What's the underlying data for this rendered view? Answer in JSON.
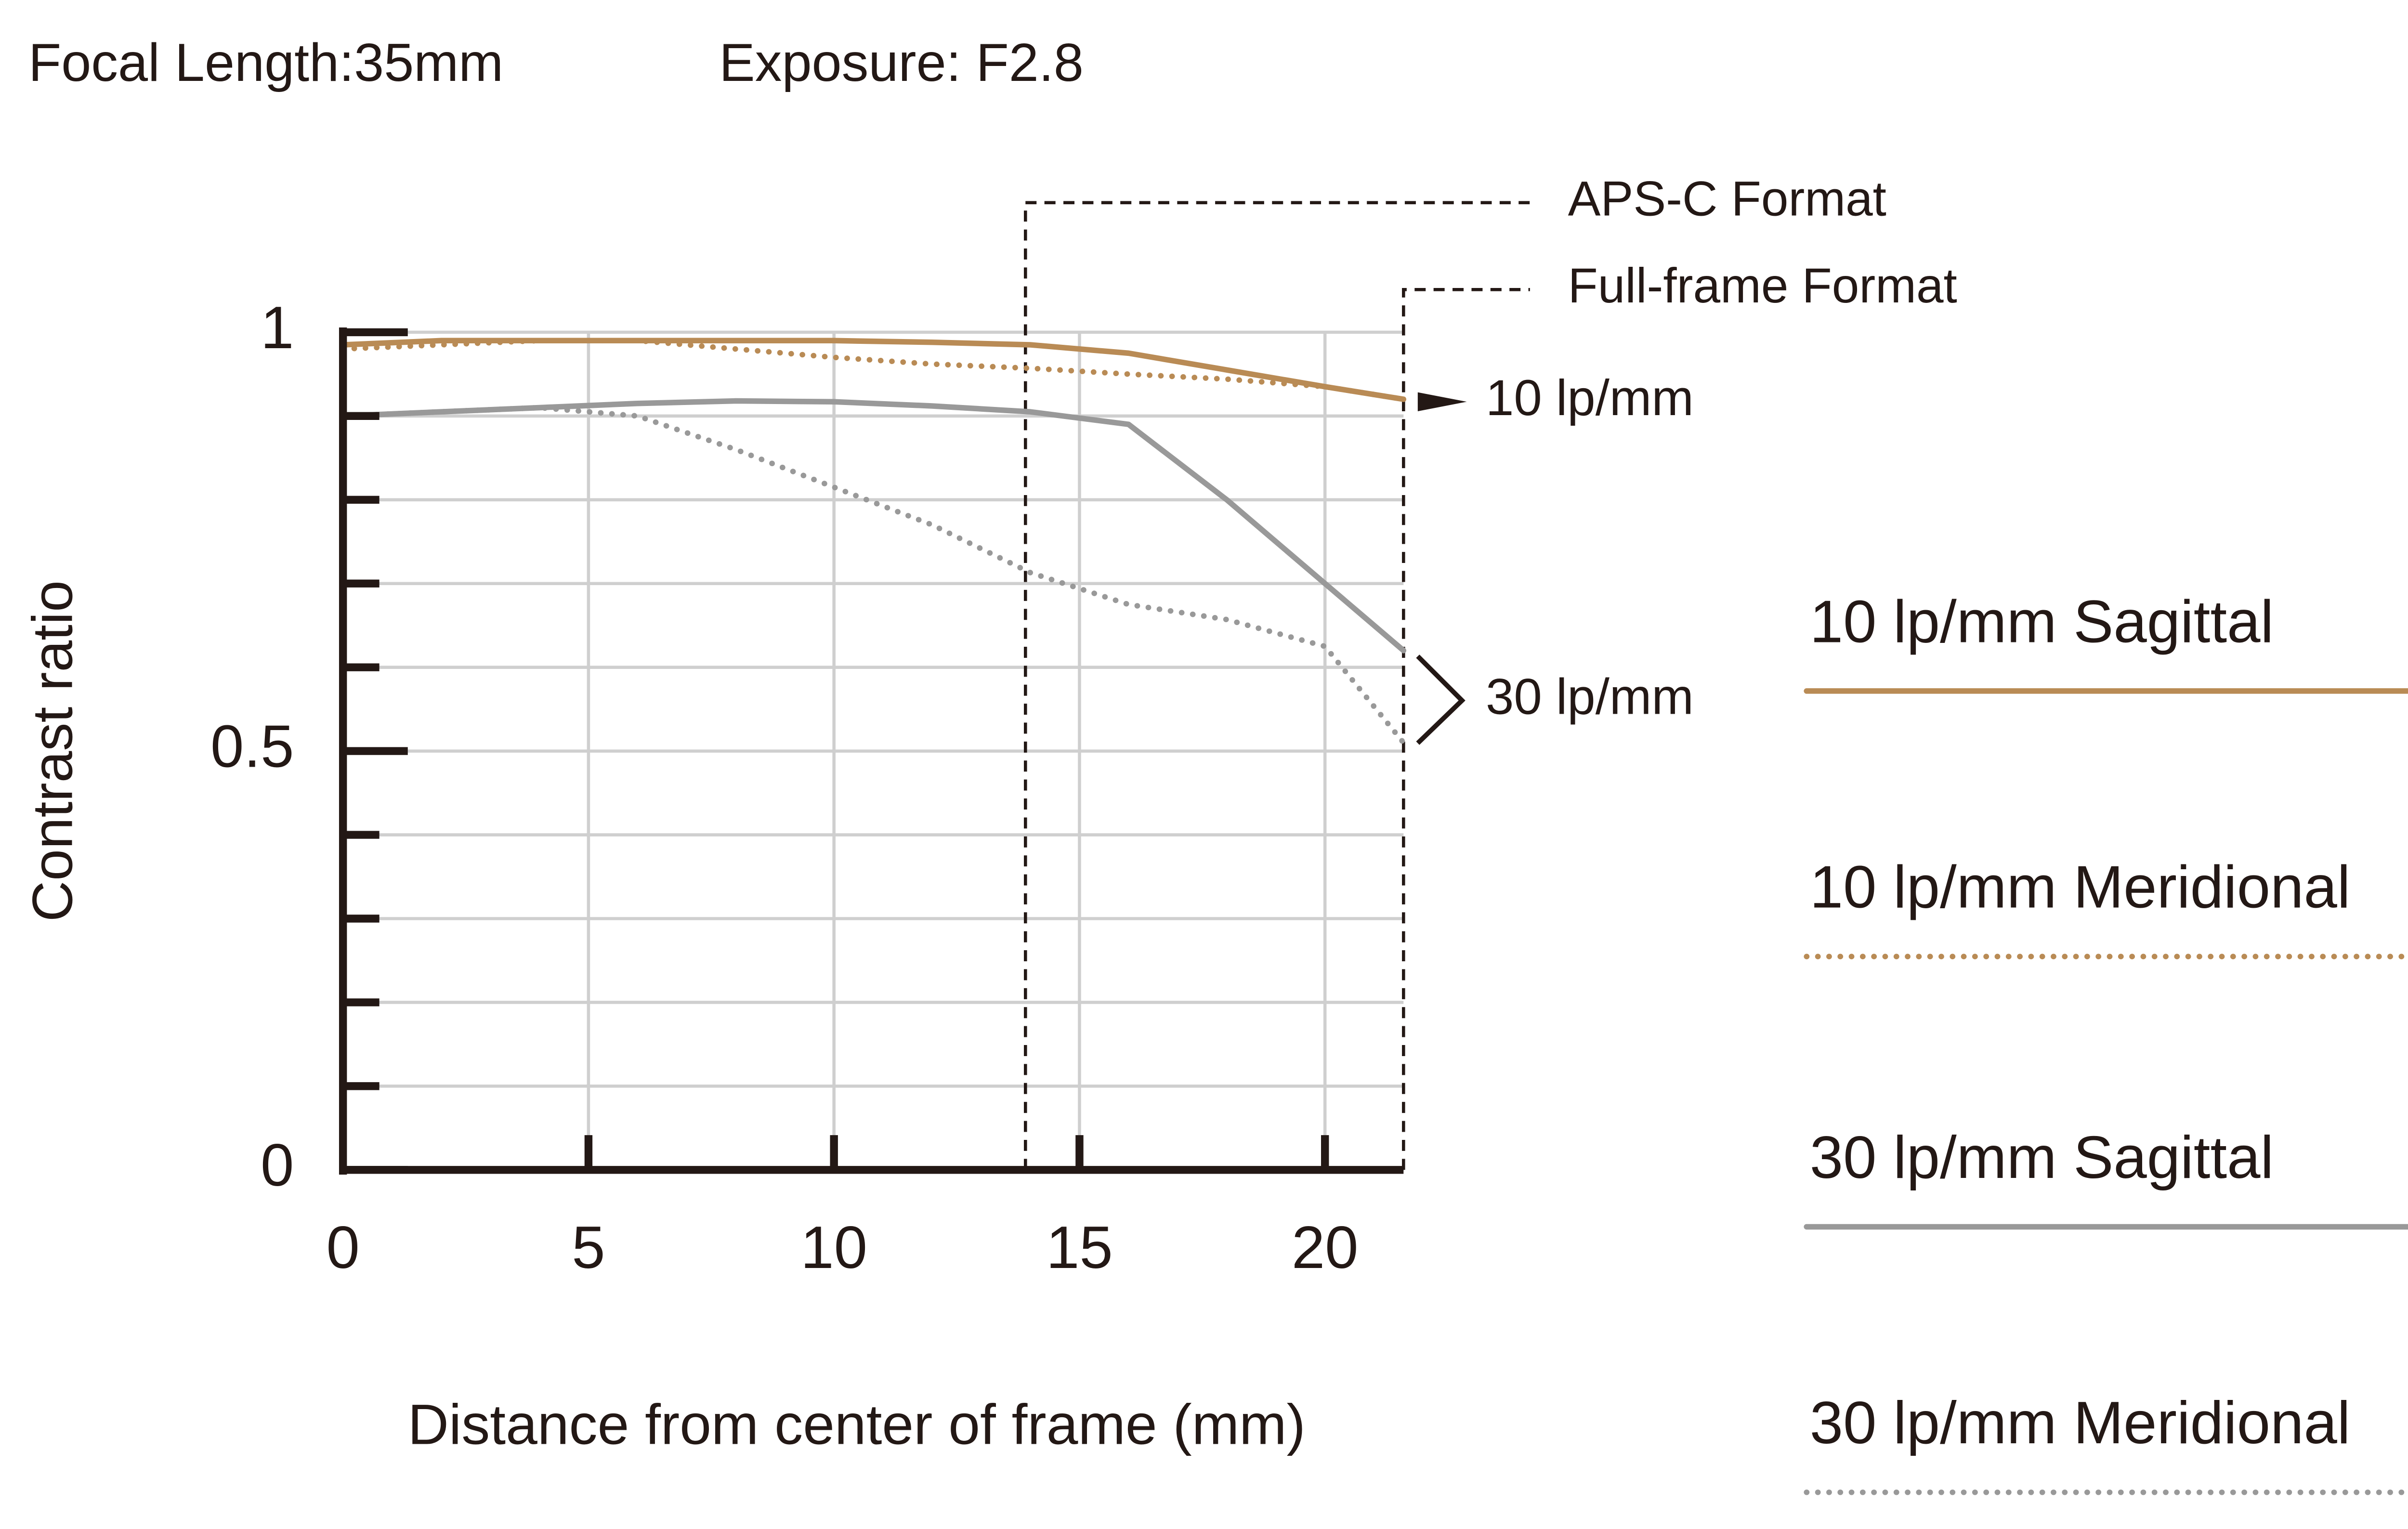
{
  "chart_data": {
    "type": "line",
    "title": "Focal Length:35mm",
    "subtitle": "Exposure: F2.8",
    "xlabel": "Distance from center of frame (mm)",
    "ylabel": "Contrast ratio",
    "x": [
      0,
      2,
      4,
      6,
      8,
      10,
      12,
      14,
      16,
      18,
      20,
      21.6
    ],
    "series": [
      {
        "name": "10 lp/mm Sagittal",
        "color": "#b98b55",
        "dash": false,
        "values": [
          0.985,
          0.99,
          0.99,
          0.99,
          0.99,
          0.99,
          0.988,
          0.985,
          0.975,
          0.955,
          0.935,
          0.92
        ]
      },
      {
        "name": "10 lp/mm Meridional",
        "color": "#b98b55",
        "dash": true,
        "values": [
          0.98,
          0.985,
          0.99,
          0.99,
          0.98,
          0.97,
          0.962,
          0.957,
          0.95,
          0.944,
          0.935,
          0.92
        ]
      },
      {
        "name": "30 lp/mm Sagittal",
        "color": "#999999",
        "dash": false,
        "values": [
          0.9,
          0.905,
          0.91,
          0.915,
          0.918,
          0.917,
          0.912,
          0.905,
          0.89,
          0.8,
          0.7,
          0.62
        ]
      },
      {
        "name": "30 lp/mm Meridional",
        "color": "#999999",
        "dash": true,
        "values": [
          0.9,
          0.905,
          0.91,
          0.9,
          0.86,
          0.815,
          0.77,
          0.713,
          0.675,
          0.657,
          0.625,
          0.51
        ]
      }
    ],
    "formats": [
      {
        "name": "APS-C Format",
        "x": 13.9
      },
      {
        "name": "Full-frame Format",
        "x": 21.6
      }
    ],
    "annotations": [
      "10 lp/mm",
      "30 lp/mm"
    ],
    "xlim": [
      0,
      21.6
    ],
    "xticks": [
      0,
      5,
      10,
      15,
      20
    ],
    "ylim": [
      0,
      1
    ],
    "yticks": [
      0,
      0.5,
      1
    ],
    "yminorticks": [
      0.1,
      0.2,
      0.3,
      0.4,
      0.6,
      0.7,
      0.8,
      0.9
    ],
    "grid": true,
    "legend": "right"
  }
}
